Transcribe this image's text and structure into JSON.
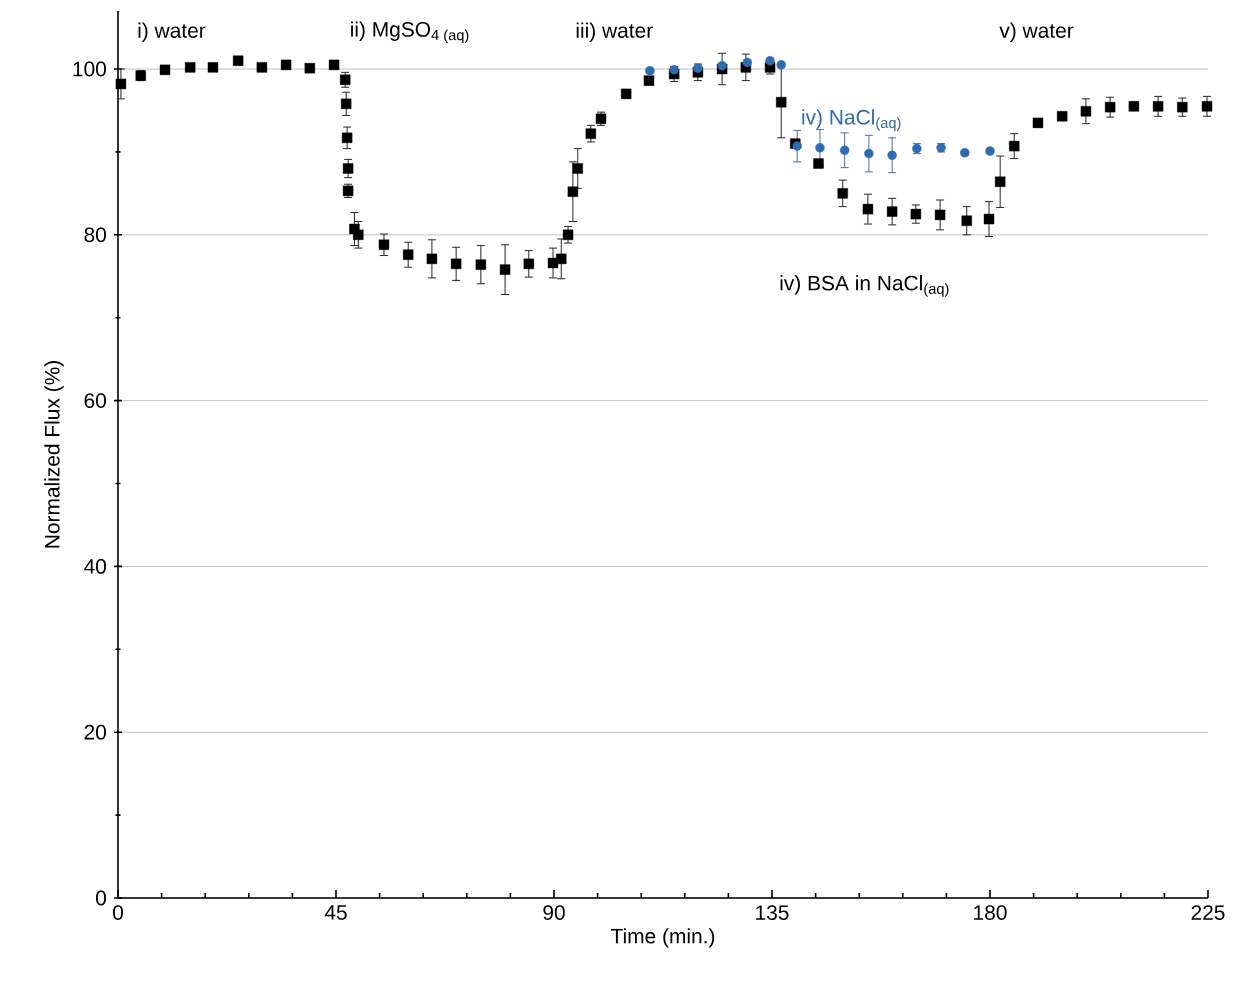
{
  "chart_data": {
    "type": "scatter",
    "xlabel": "Time (min.)",
    "ylabel": "Normalized Flux (%)",
    "xlim": [
      0,
      225
    ],
    "xticks": [
      0,
      45,
      90,
      135,
      180,
      225
    ],
    "ylim": [
      0,
      107
    ],
    "yticks": [
      0,
      20,
      40,
      60,
      80,
      100
    ],
    "grid": "y",
    "annotations": [
      "i) water",
      "ii) MgSO$_{4 (aq)}$",
      "iii) water",
      "v) water"
    ],
    "series": [
      {
        "name": "iv) BSA in NaCl$_{(aq)}$",
        "color": "#000000",
        "marker": "square",
        "x": [
          0.6,
          4.7,
          9.7,
          14.9,
          19.6,
          24.8,
          29.7,
          34.7,
          39.6,
          44.6,
          46.9,
          47.1,
          47.3,
          47.5,
          47.5,
          48.8,
          49.6,
          54.9,
          59.9,
          64.8,
          69.8,
          74.9,
          79.9,
          84.8,
          89.8,
          91.5,
          92.9,
          93.9,
          94.9,
          97.6,
          99.7,
          104.9,
          109.6,
          114.8,
          119.7,
          124.7,
          129.6,
          134.6,
          136.9,
          139.8,
          144.6,
          149.6,
          154.8,
          159.8,
          164.7,
          169.7,
          175.2,
          179.8,
          182.1,
          185.0,
          189.9,
          194.9,
          199.8,
          204.8,
          209.7,
          214.7,
          219.7,
          224.8
        ],
        "values": [
          98.2,
          99.2,
          99.9,
          100.2,
          100.2,
          101,
          100.2,
          100.5,
          100.1,
          100.5,
          98.7,
          95.8,
          91.7,
          88.0,
          85.3,
          80.7,
          80.0,
          78.8,
          77.6,
          77.1,
          76.5,
          76.4,
          75.8,
          76.5,
          76.6,
          77.1,
          80.0,
          85.2,
          88.0,
          92.2,
          94.0,
          97.0,
          98.6,
          99.4,
          99.6,
          100.0,
          100.2,
          100.2,
          96.0,
          91.0,
          88.6,
          85.0,
          83.1,
          82.8,
          82.5,
          82.4,
          81.7,
          81.9,
          86.4,
          90.7,
          93.5,
          94.3,
          94.9,
          95.4,
          95.5,
          95.5,
          95.4,
          95.5
        ],
        "errors": [
          1.8,
          0.6,
          0.4,
          0.3,
          0.3,
          0.5,
          0.3,
          0.3,
          0.3,
          0.3,
          0.9,
          1.4,
          1.3,
          1.1,
          0.8,
          2.0,
          1.6,
          1.3,
          1.5,
          2.3,
          2.0,
          2.3,
          3.0,
          1.6,
          1.8,
          2.4,
          1.0,
          3.6,
          2.4,
          1.0,
          0.8,
          0.3,
          0.5,
          0.9,
          1.0,
          1.9,
          1.6,
          0.8,
          4.3,
          0.5,
          0.3,
          1.6,
          1.8,
          1.6,
          1.1,
          1.8,
          1.7,
          2.1,
          3.1,
          1.5,
          0.5,
          0.3,
          1.5,
          1.2,
          0.5,
          1.2,
          1.1,
          1.2
        ]
      },
      {
        "name": "iv) NaCl$_{(aq)}$",
        "color": "#2e6bb0",
        "marker": "circle",
        "x": [
          109.8,
          114.8,
          119.7,
          124.7,
          129.9,
          134.6,
          136.9,
          140.2,
          144.9,
          150,
          155,
          159.8,
          164.9,
          169.9,
          174.8,
          180
        ],
        "values": [
          99.8,
          99.9,
          100.1,
          100.4,
          100.8,
          101,
          100.5,
          90.7,
          90.5,
          90.2,
          89.8,
          89.6,
          90.4,
          90.5,
          89.9,
          90.1
        ],
        "errors": [
          0.3,
          0.3,
          0.3,
          0.3,
          0.3,
          0.3,
          0.3,
          1.9,
          2.2,
          2.1,
          2.2,
          2.1,
          0.6,
          0.5,
          0.3,
          0.3
        ]
      }
    ]
  }
}
